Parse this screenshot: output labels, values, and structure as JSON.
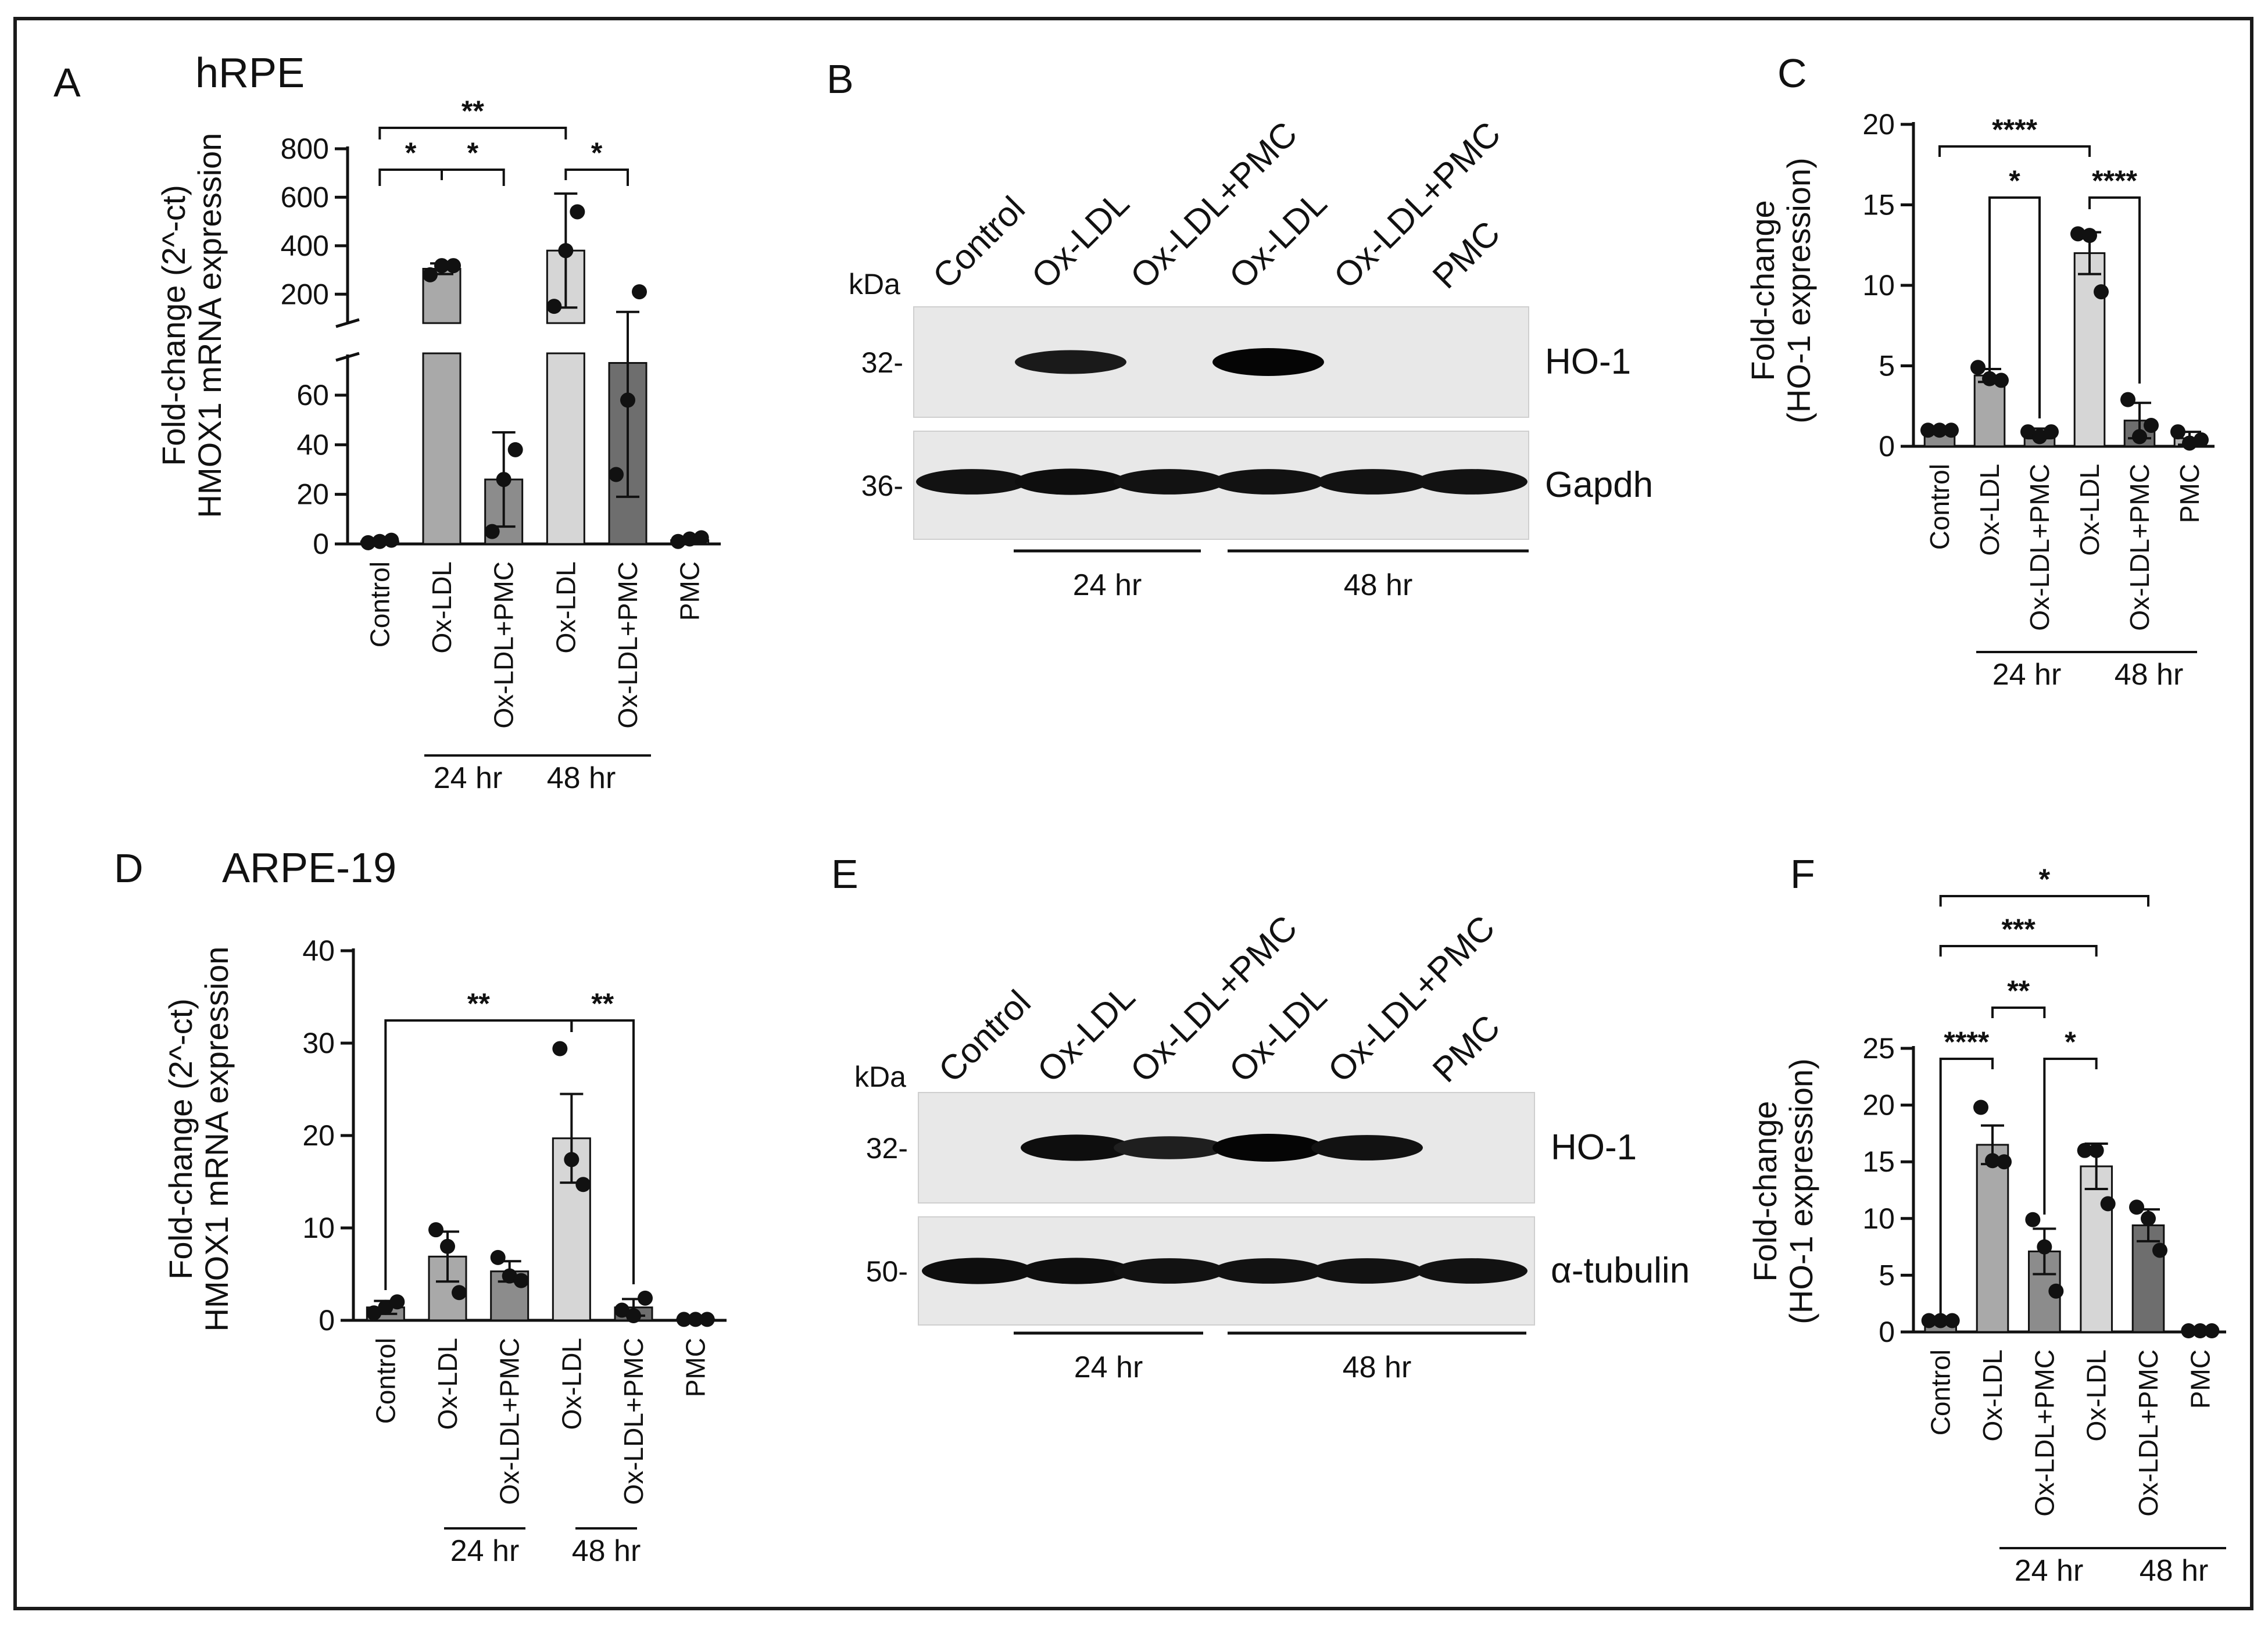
{
  "figure": {
    "border_color": "#1a1a1a",
    "bar_colors": {
      "control": "#8c8c8c",
      "ox_ldl_24": "#a9a9a9",
      "ox_ldl_pmc_24": "#8c8c8c",
      "ox_ldl_48": "#d6d6d6",
      "ox_ldl_pmc_48": "#6e6e6e",
      "pmc": "#b4b4b4"
    }
  },
  "chart_data": [
    {
      "panel": "A",
      "type": "bar",
      "title": "hRPE",
      "ylabel_line1": "Fold-change (2^-ct)",
      "ylabel_line2": "HMOX1 mRNA expression",
      "categories": [
        "Control",
        "Ox-LDL",
        "Ox-LDL+PMC",
        "Ox-LDL",
        "Ox-LDL+PMC",
        "PMC"
      ],
      "values": [
        1,
        305,
        26,
        380,
        73,
        1.5
      ],
      "errors": [
        0.5,
        22,
        19,
        235,
        54,
        0.7
      ],
      "points": [
        [
          0.5,
          1,
          1.5
        ],
        [
          280,
          318,
          318
        ],
        [
          5,
          26,
          38
        ],
        [
          150,
          380,
          540
        ],
        [
          28,
          58,
          210
        ],
        [
          1,
          2,
          2.5
        ]
      ],
      "axis_broken": true,
      "lower_ticks": [
        "0",
        "20",
        "40",
        "60"
      ],
      "upper_ticks": [
        "200",
        "400",
        "600",
        "800"
      ],
      "ylim_lower": [
        0,
        75
      ],
      "ylim_upper": [
        100,
        800
      ],
      "groups": [
        {
          "label": "24 hr"
        },
        {
          "label": "48 hr"
        }
      ],
      "significance": [
        "**",
        "*",
        "*",
        "*"
      ]
    },
    {
      "panel": "C",
      "type": "bar",
      "ylabel_line1": "Fold-change",
      "ylabel_line2": "(HO-1 expression)",
      "categories": [
        "Control",
        "Ox-LDL",
        "Ox-LDL+PMC",
        "Ox-LDL",
        "Ox-LDL+PMC",
        "PMC"
      ],
      "values": [
        1,
        4.4,
        0.8,
        12,
        1.6,
        0.5
      ],
      "errors": [
        0.05,
        0.4,
        0.3,
        1.3,
        1.1,
        0.4
      ],
      "points": [
        [
          1,
          1,
          1
        ],
        [
          4.9,
          4.2,
          4.1
        ],
        [
          0.9,
          0.6,
          0.9
        ],
        [
          13.2,
          13.1,
          9.6
        ],
        [
          2.9,
          0.6,
          1.3
        ],
        [
          0.9,
          0.2,
          0.4
        ]
      ],
      "ylim": [
        0,
        20
      ],
      "yticks": [
        "0",
        "5",
        "10",
        "15",
        "20"
      ],
      "groups": [
        {
          "label": "24 hr"
        },
        {
          "label": "48 hr"
        }
      ],
      "significance": [
        "****",
        "*",
        "****"
      ]
    },
    {
      "panel": "D",
      "type": "bar",
      "title": "ARPE-19",
      "ylabel_line1": "Fold-change (2^-ct)",
      "ylabel_line2": "HMOX1 mRNA expression",
      "categories": [
        "Control",
        "Ox-LDL",
        "Ox-LDL+PMC",
        "Ox-LDL",
        "Ox-LDL+PMC",
        "PMC"
      ],
      "values": [
        1.4,
        6.9,
        5.3,
        19.7,
        1.4,
        0.1
      ],
      "errors": [
        0.7,
        2.7,
        1.1,
        4.8,
        0.9,
        0.05
      ],
      "points": [
        [
          0.8,
          1.4,
          2.0
        ],
        [
          9.8,
          8.0,
          3.0
        ],
        [
          6.8,
          4.8,
          4.3
        ],
        [
          29.4,
          17.4,
          14.7
        ],
        [
          1.1,
          0.5,
          2.4
        ],
        [
          0.1,
          0.1,
          0.1
        ]
      ],
      "ylim": [
        0,
        40
      ],
      "yticks": [
        "0",
        "10",
        "20",
        "30",
        "40"
      ],
      "groups": [
        {
          "label": "24 hr"
        },
        {
          "label": "48 hr"
        }
      ],
      "significance": [
        "**",
        "**"
      ]
    },
    {
      "panel": "F",
      "type": "bar",
      "ylabel_line1": "Fold-change",
      "ylabel_line2": "(HO-1 expression)",
      "categories": [
        "Control",
        "Ox-LDL",
        "Ox-LDL+PMC",
        "Ox-LDL",
        "Ox-LDL+PMC",
        "PMC"
      ],
      "values": [
        1,
        16.5,
        7.1,
        14.6,
        9.4,
        0.1
      ],
      "errors": [
        0.05,
        1.7,
        2.0,
        2.0,
        1.4,
        0.05
      ],
      "points": [
        [
          1,
          1,
          1
        ],
        [
          19.8,
          15.1,
          15.0
        ],
        [
          9.9,
          7.5,
          3.6
        ],
        [
          16.0,
          16.0,
          11.3
        ],
        [
          11.0,
          10.0,
          7.2
        ],
        [
          0.1,
          0.1,
          0.1
        ]
      ],
      "ylim": [
        0,
        25
      ],
      "yticks": [
        "0",
        "5",
        "10",
        "15",
        "20",
        "25"
      ],
      "groups": [
        {
          "label": "24 hr"
        },
        {
          "label": "48 hr"
        }
      ],
      "significance": [
        "*",
        "***",
        "**",
        "****",
        "*"
      ]
    }
  ],
  "blots": [
    {
      "panel": "B",
      "lanes": [
        "Control",
        "Ox-LDL",
        "Ox-LDL+PMC",
        "Ox-LDL",
        "Ox-LDL+PMC",
        "PMC"
      ],
      "unit": "kDa",
      "proteins": [
        {
          "name": "HO-1",
          "kda": "32-",
          "intensities": [
            0,
            0.75,
            0,
            1,
            0,
            0
          ]
        },
        {
          "name": "Gapdh",
          "kda": "36-",
          "intensities": [
            0.85,
            0.9,
            0.85,
            0.85,
            0.85,
            0.85
          ]
        }
      ],
      "groups": [
        "24 hr",
        "48 hr"
      ]
    },
    {
      "panel": "E",
      "lanes": [
        "Control",
        "Ox-LDL",
        "Ox-LDL+PMC",
        "Ox-LDL",
        "Ox-LDL+PMC",
        "PMC"
      ],
      "unit": "kDa",
      "proteins": [
        {
          "name": "HO-1",
          "kda": "32-",
          "intensities": [
            0,
            0.9,
            0.7,
            1,
            0.85,
            0
          ]
        },
        {
          "name": "α-tubulin",
          "kda": "50-",
          "intensities": [
            0.9,
            0.9,
            0.85,
            0.85,
            0.85,
            0.85
          ]
        }
      ],
      "groups": [
        "24 hr",
        "48 hr"
      ]
    }
  ]
}
